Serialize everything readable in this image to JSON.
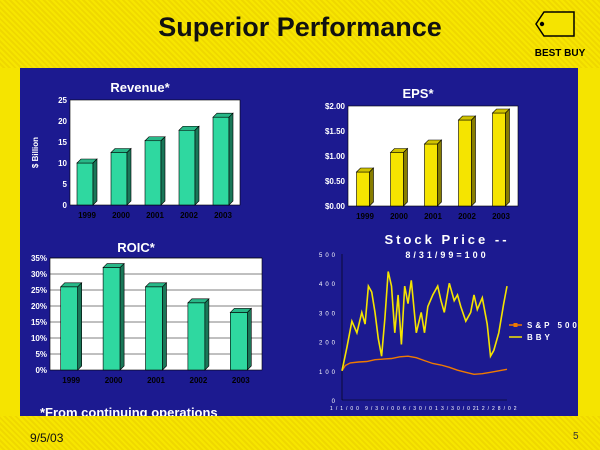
{
  "slide": {
    "title": "Superior Performance",
    "logo_text": "BEST BUY",
    "date": "9/5/03",
    "page_number": "5",
    "footnote": "*From continuing operations"
  },
  "colors": {
    "background": "#f5e400",
    "panel": "#1c1a90",
    "plot_area": "#ffffff",
    "green_bar": "#2fd8a0",
    "yellow_bar": "#f5e400",
    "sp500_line": "#f07a00",
    "bby_line": "#f5e400"
  },
  "chart_data": [
    {
      "id": "revenue",
      "type": "bar",
      "title": "Revenue*",
      "ylabel": "$ Billion",
      "categories": [
        "1999",
        "2000",
        "2001",
        "2002",
        "2003"
      ],
      "values": [
        10,
        12.5,
        15.3,
        17.8,
        20.9
      ],
      "ylim": [
        0,
        25
      ],
      "yticks": [
        0,
        5,
        10,
        15,
        20,
        25
      ],
      "ytick_labels": [
        "0",
        "5",
        "10",
        "15",
        "20",
        "25"
      ],
      "bar_color": "#2fd8a0",
      "grid": false
    },
    {
      "id": "eps",
      "type": "bar",
      "title": "EPS*",
      "categories": [
        "1999",
        "2000",
        "2001",
        "2002",
        "2003"
      ],
      "values": [
        0.68,
        1.07,
        1.24,
        1.72,
        1.86
      ],
      "ylim": [
        0,
        2
      ],
      "yticks": [
        0,
        0.5,
        1,
        1.5,
        2
      ],
      "ytick_labels": [
        "$0.00",
        "$0.50",
        "$1.00",
        "$1.50",
        "$2.00"
      ],
      "bar_color": "#f5e400",
      "grid": false
    },
    {
      "id": "roic",
      "type": "bar",
      "title": "ROIC*",
      "categories": [
        "1999",
        "2000",
        "2001",
        "2002",
        "2003"
      ],
      "values": [
        0.26,
        0.32,
        0.26,
        0.21,
        0.18
      ],
      "ylim": [
        0,
        0.35
      ],
      "yticks": [
        0,
        0.05,
        0.1,
        0.15,
        0.2,
        0.25,
        0.3,
        0.35
      ],
      "ytick_labels": [
        "0%",
        "5%",
        "10%",
        "15%",
        "20%",
        "25%",
        "30%",
        "35%"
      ],
      "bar_color": "#2fd8a0",
      "grid": true
    },
    {
      "id": "stock",
      "type": "line",
      "title": "Stock Price --",
      "subtitle": "8/31/99=100",
      "ylim": [
        0,
        500
      ],
      "yticks": [
        0,
        100,
        200,
        300,
        400,
        500
      ],
      "ytick_labels": [
        "0",
        "100",
        "200",
        "300",
        "400",
        "500"
      ],
      "xtick_labels": [
        "1/1/00",
        "9/30/00",
        "6/30/01",
        "3/30/02",
        "12/28/02"
      ],
      "legend": "right",
      "series": [
        {
          "name": "S&P 500",
          "color": "#f07a00",
          "x": [
            0,
            0.02,
            0.05,
            0.1,
            0.15,
            0.2,
            0.25,
            0.3,
            0.35,
            0.4,
            0.45,
            0.5,
            0.55,
            0.6,
            0.65,
            0.7,
            0.75,
            0.8,
            0.85,
            0.9,
            0.95,
            1.0
          ],
          "values": [
            100,
            118,
            127,
            130,
            132,
            138,
            140,
            142,
            148,
            150,
            145,
            135,
            125,
            120,
            112,
            102,
            95,
            88,
            90,
            95,
            100,
            105
          ]
        },
        {
          "name": "BBY",
          "color": "#f5e400",
          "x": [
            0,
            0.03,
            0.06,
            0.09,
            0.12,
            0.14,
            0.16,
            0.18,
            0.2,
            0.22,
            0.24,
            0.26,
            0.28,
            0.3,
            0.32,
            0.34,
            0.36,
            0.38,
            0.4,
            0.42,
            0.45,
            0.48,
            0.5,
            0.52,
            0.55,
            0.58,
            0.6,
            0.62,
            0.65,
            0.68,
            0.7,
            0.72,
            0.75,
            0.78,
            0.8,
            0.82,
            0.85,
            0.88,
            0.9,
            0.92,
            0.95,
            0.98,
            1.0
          ],
          "values": [
            100,
            180,
            270,
            230,
            300,
            260,
            390,
            370,
            300,
            210,
            150,
            280,
            440,
            390,
            230,
            360,
            190,
            390,
            330,
            410,
            230,
            300,
            230,
            320,
            360,
            390,
            340,
            300,
            400,
            340,
            360,
            320,
            270,
            300,
            360,
            310,
            350,
            260,
            150,
            170,
            230,
            330,
            390
          ]
        }
      ]
    }
  ]
}
